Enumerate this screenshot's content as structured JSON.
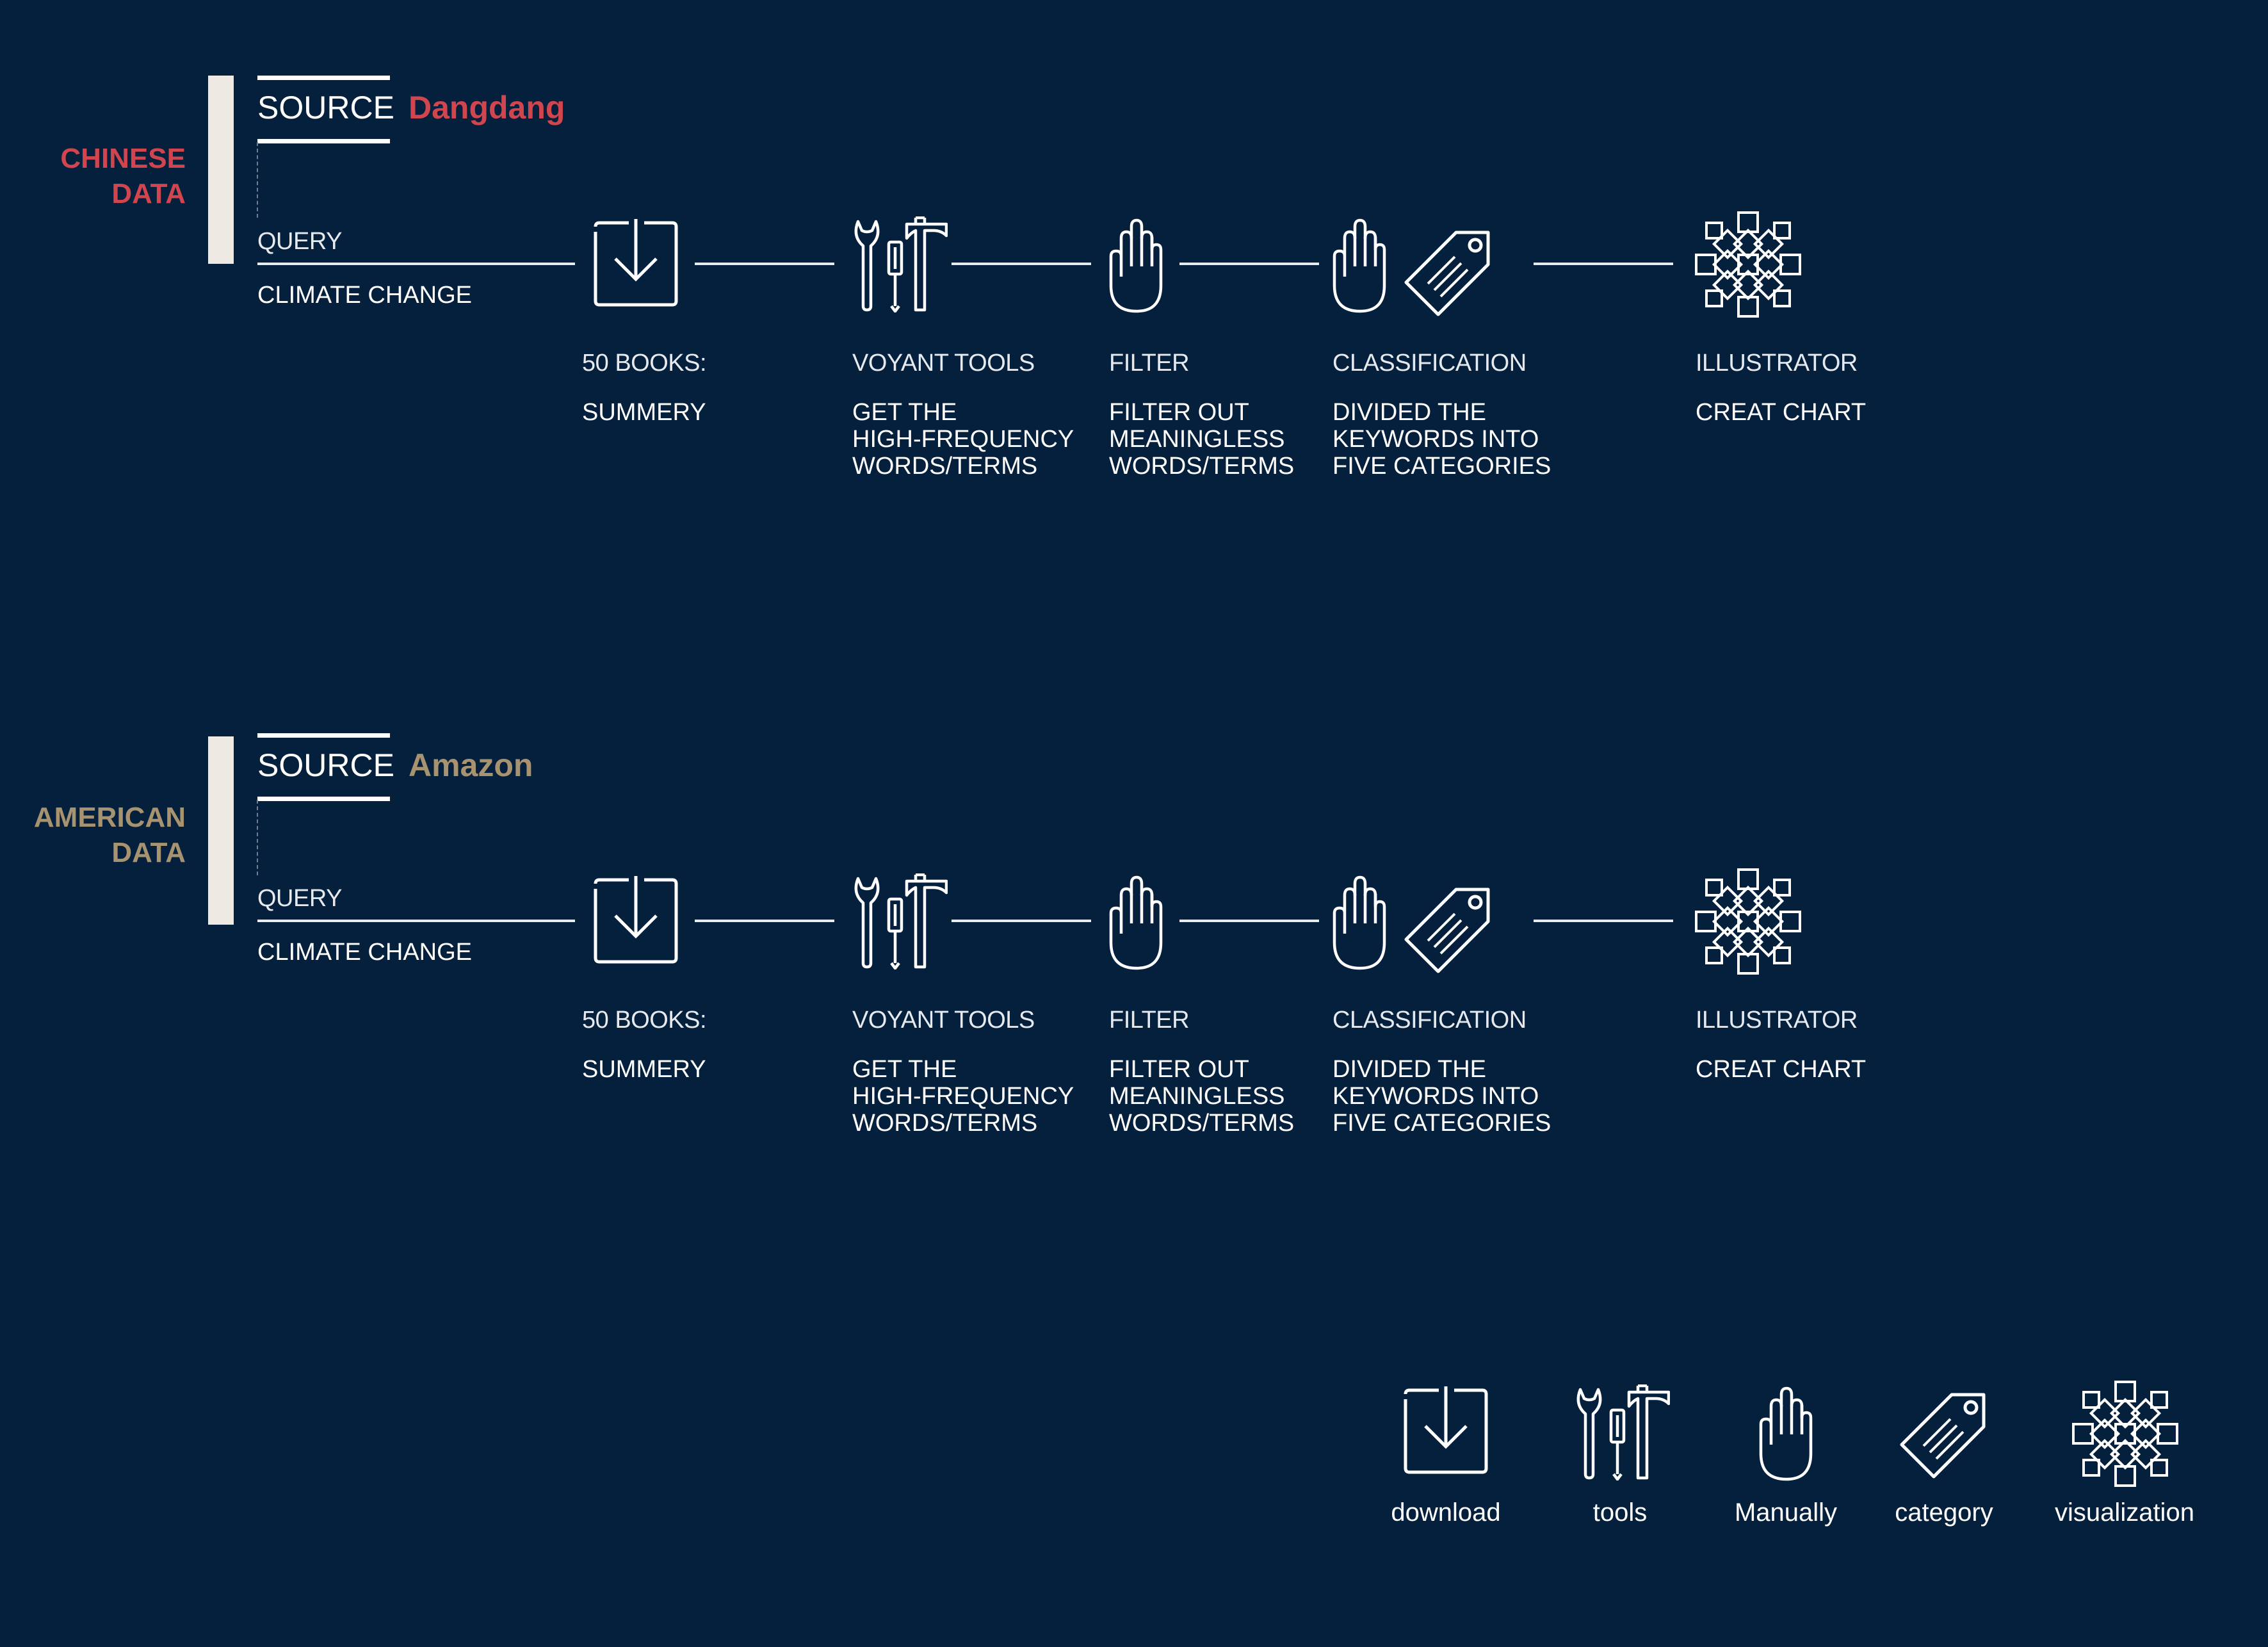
{
  "colors": {
    "background": "#04203d",
    "chinese": "#d1454e",
    "american": "#a89370",
    "ink": "#ffffff"
  },
  "rows": [
    {
      "side_label": "CHINESE\nDATA",
      "source_word": "SOURCE",
      "source_name": "Dangdang",
      "query_label": "QUERY",
      "query_value": "CLIMATE CHANGE",
      "steps": [
        {
          "icon": "download-icon",
          "label": "50 BOOKS:",
          "value": "SUMMERY"
        },
        {
          "icon": "tools-icon",
          "label": "VOYANT TOOLS",
          "value": "GET THE\nHIGH-FREQUENCY\nWORDS/TERMS"
        },
        {
          "icon": "hand-icon",
          "label": "FILTER",
          "value": "FILTER OUT\nMEANINGLESS\nWORDS/TERMS"
        },
        {
          "icon": "hand-tag-icon",
          "label": "CLASSIFICATION",
          "value": "DIVIDED THE\nKEYWORDS INTO\nFIVE CATEGORIES"
        },
        {
          "icon": "visualization-icon",
          "label": "ILLUSTRATOR",
          "value": "CREAT CHART"
        }
      ]
    },
    {
      "side_label": "AMERICAN\nDATA",
      "source_word": "SOURCE",
      "source_name": "Amazon",
      "query_label": "QUERY",
      "query_value": "CLIMATE CHANGE",
      "steps": [
        {
          "icon": "download-icon",
          "label": "50 BOOKS:",
          "value": "SUMMERY"
        },
        {
          "icon": "tools-icon",
          "label": "VOYANT TOOLS",
          "value": "GET THE\nHIGH-FREQUENCY\nWORDS/TERMS"
        },
        {
          "icon": "hand-icon",
          "label": "FILTER",
          "value": "FILTER OUT\nMEANINGLESS\nWORDS/TERMS"
        },
        {
          "icon": "hand-tag-icon",
          "label": "CLASSIFICATION",
          "value": "DIVIDED THE\nKEYWORDS INTO\nFIVE CATEGORIES"
        },
        {
          "icon": "visualization-icon",
          "label": "ILLUSTRATOR",
          "value": "CREAT CHART"
        }
      ]
    }
  ],
  "legend": [
    {
      "icon": "download-icon",
      "label": "download"
    },
    {
      "icon": "tools-icon",
      "label": "tools"
    },
    {
      "icon": "hand-icon",
      "label": "Manually"
    },
    {
      "icon": "tag-icon",
      "label": "category"
    },
    {
      "icon": "visualization-icon",
      "label": "visualization"
    }
  ]
}
